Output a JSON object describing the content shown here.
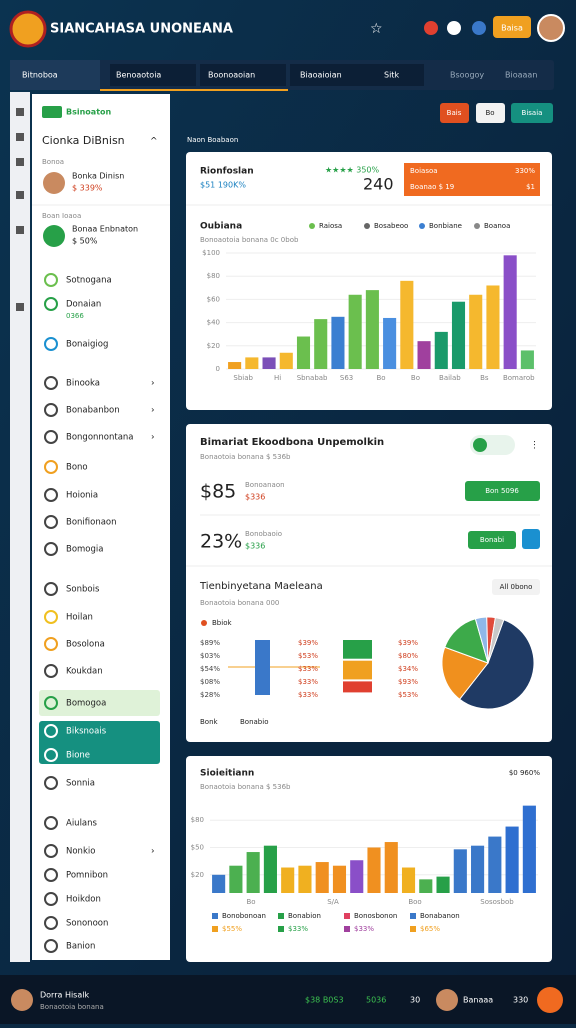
{
  "header": {
    "title": "SIANCAHASA UNONEANA",
    "button": "Baisa"
  },
  "tabs": [
    "Bitnoboa",
    "Benoaotoia",
    "Boonoaoian",
    "Biaoaioian",
    "Sitk",
    "Bsoogoy",
    "Bioaaan"
  ],
  "toolbar": [
    "Bais",
    "Bo",
    "Bisaia"
  ],
  "breadcrumb": "Naon Boabaon",
  "sidebar": {
    "badge": "Bsinoaton",
    "title": "Cionka DiBnisn",
    "profile": {
      "label": "Bonoa",
      "name": "Bonka Dinisn",
      "value": "$ 339%"
    },
    "profile2": {
      "label": "Boan Ioaoa",
      "name": "Bonaa Enbnaton",
      "value": "$ 50%"
    },
    "items": [
      "Sotnogana",
      "Donaian",
      "0366",
      "Bonaigiog",
      "Binooka",
      "Bonabanbon",
      "Bongonnontana",
      "Bono",
      "Hoionia",
      "Bonifionaon",
      "Bomogia",
      "Sonbois",
      "Hoilan",
      "Bosolona",
      "Koukdan",
      "Bomogoa",
      "Biksnoais",
      "Bione",
      "Sonnia",
      "Aiulans",
      "Nonkio",
      "Pomnibon",
      "Hoikdon",
      "Sononoon",
      "Banion"
    ]
  },
  "panel1": {
    "title": "Rionfoslan",
    "subtitle": "$51 190K%",
    "rating": "★★★★ 350%",
    "value": 240,
    "alert": {
      "title": "Boiasoa",
      "value": "330%",
      "sub": "Boanao $ 19",
      "sub2": "$1"
    },
    "chart": {
      "title": "Oubiana",
      "subtitle": "Bonoaotoia bonana 0c 0bob",
      "legend": [
        "Raiosa",
        "Bosabeoo",
        "Bonbiane",
        "Boanoa"
      ],
      "ylim": [
        0,
        100
      ],
      "yticks": [
        0,
        {
          "value": 20,
          "label": "$20"
        },
        {
          "value": 40,
          "label": "$40"
        },
        {
          "value": 60,
          "label": "$60"
        },
        {
          "value": 80,
          "label": "$80"
        },
        {
          "value": 100,
          "label": "$100"
        }
      ],
      "categories": [
        "Sbiab",
        "Hi",
        "Sbnabab",
        "S63",
        "Bo",
        "Bo",
        "Bailab",
        "Bs",
        "Bomarob"
      ],
      "values": [
        6,
        10,
        10,
        14,
        28,
        43,
        45,
        64,
        68,
        44,
        76,
        24,
        32,
        58,
        64,
        72,
        98,
        16
      ],
      "colors": [
        "#f0a020",
        "#f5b82e",
        "#7b4fb8",
        "#f5b82e",
        "#6bbf4e",
        "#6bbf4e",
        "#3b7fd1",
        "#6bbf4e",
        "#6bbf4e",
        "#4a8fe0",
        "#f5b82e",
        "#a0409e",
        "#1a9a6a",
        "#1a9a6a",
        "#f5b82e",
        "#f5b82e",
        "#8a4fc8",
        "#5cc06a"
      ]
    }
  },
  "panel2": {
    "title": "Bimariat Ekoodbona Unpemolkin",
    "subtitle": "Bonaotoia bonana $ 536b",
    "kpi1": {
      "value": "$85",
      "label": "Bonoanaon",
      "sub": "$336",
      "button": "Bon 5096"
    },
    "kpi2": {
      "value": "23%",
      "label": "Bonobaoio",
      "sub": "$336",
      "button": "Bonabi"
    },
    "section": "Tienbinyetana Maeleana",
    "section_sub": "Bonaotoia bonana 000",
    "dropdown": "All 0bono",
    "legend": "Bbiok",
    "label_columns": [
      [
        "$89%",
        "$03%",
        "$54%",
        "$08%",
        "$28%"
      ],
      [
        "$39%",
        "$53%",
        "$33%",
        "$33%",
        "$33%"
      ],
      [
        "$39%",
        "$80%",
        "$34%",
        "$93%",
        "$53%"
      ]
    ],
    "stack_a": {
      "values": [
        50
      ],
      "colors": [
        "#3a78c9"
      ]
    },
    "stack_b": {
      "values": [
        17,
        17,
        10
      ],
      "colors": [
        "#27a048",
        "#f0a020",
        "#e04030"
      ]
    },
    "pie": {
      "values": [
        55,
        20,
        15,
        4,
        3,
        3
      ],
      "colors": [
        "#1f3a64",
        "#f0901e",
        "#3daa4a",
        "#8fb8e8",
        "#e04a3a",
        "#c8c8c8"
      ]
    },
    "footer": [
      "Bonk",
      "Bonabio"
    ]
  },
  "panel3": {
    "title": "Sioieitiann",
    "subtitle": "Bonaotoia bonana $ 536b",
    "corner": "$0 960%",
    "chart": {
      "ylim": [
        0,
        100
      ],
      "yticks": [
        {
          "value": 20,
          "label": "$20"
        },
        {
          "value": 50,
          "label": "$50"
        },
        {
          "value": 80,
          "label": "$80"
        }
      ],
      "values": [
        20,
        30,
        45,
        52,
        28,
        30,
        34,
        30,
        36,
        50,
        56,
        28,
        15,
        18,
        48,
        52,
        62,
        73,
        96
      ],
      "colors": [
        "#3a78c9",
        "#4cb050",
        "#4cb050",
        "#27a048",
        "#f0b020",
        "#f0b020",
        "#f09020",
        "#f09020",
        "#8a4fc8",
        "#f09020",
        "#f09020",
        "#f0b020",
        "#4cb050",
        "#27a048",
        "#3a78c9",
        "#3a78c9",
        "#3a78c9",
        "#2f6fd0",
        "#2f6fd0"
      ],
      "x_labels": [
        "Bo",
        "S/A",
        "Boo",
        "Sososbob"
      ]
    },
    "legend": [
      {
        "name": "Bonobonoan",
        "color": "#3a78c9"
      },
      {
        "name": "Bonabion",
        "color": "#27a048"
      },
      {
        "name": "Bonosbonon",
        "color": "#e04060"
      },
      {
        "name": "Bonabanon",
        "color": "#3a78c9"
      },
      {
        "name": "$55%",
        "color": "#f0a020"
      },
      {
        "name": "$33%",
        "color": "#27a048"
      },
      {
        "name": "$33%",
        "color": "#a0409e"
      },
      {
        "name": "$65%",
        "color": "#f0a020"
      }
    ]
  },
  "footer": {
    "name": "Dorra Hisalk",
    "role": "Bonaotoia bonana",
    "stat1": "$38 B0S3",
    "stat2": "5036",
    "stat3": "30",
    "user": "Banaaa",
    "count": "330"
  }
}
